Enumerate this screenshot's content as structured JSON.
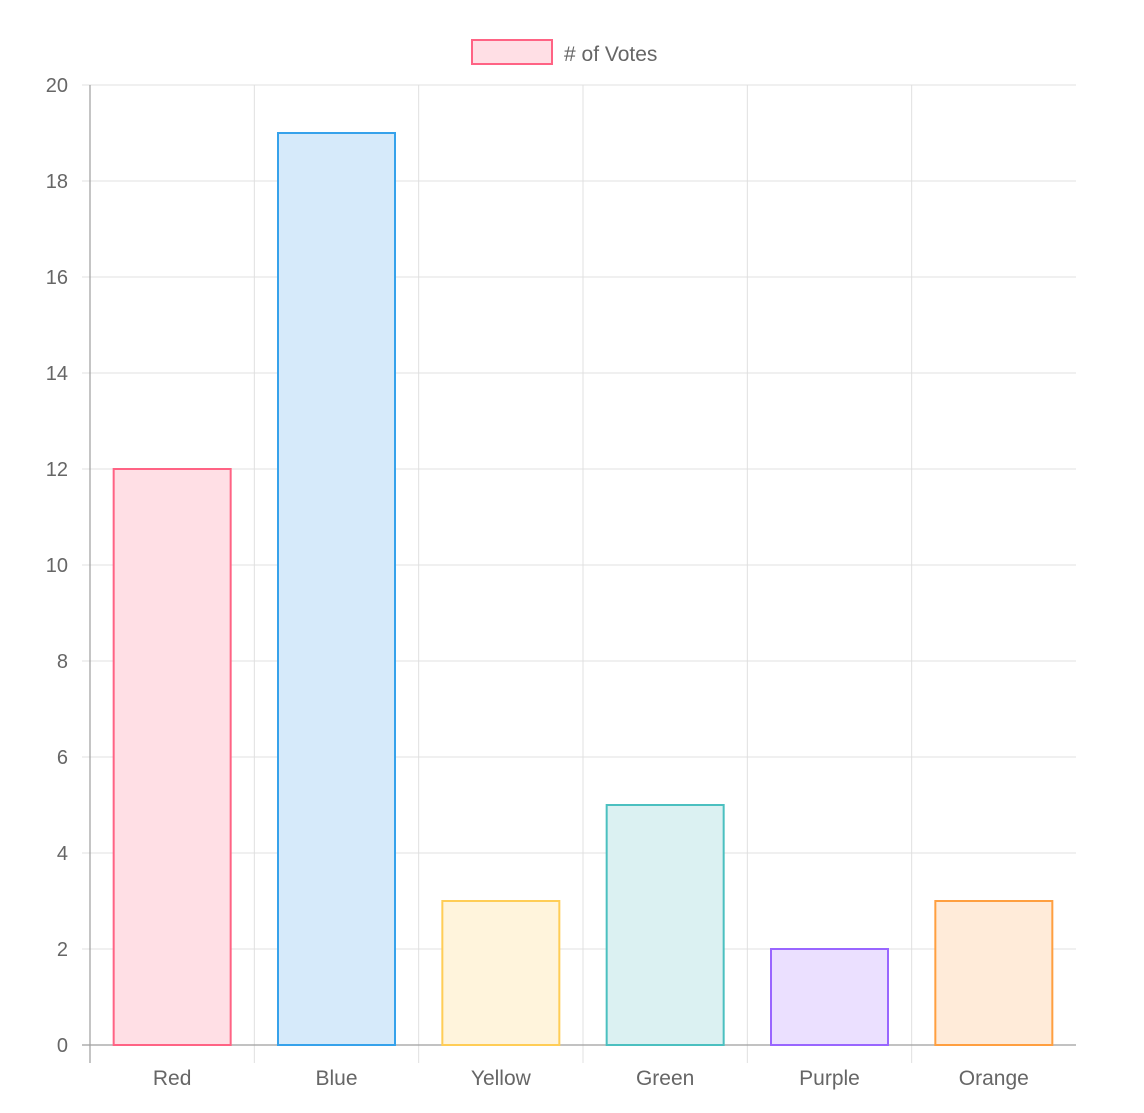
{
  "chart_data": {
    "type": "bar",
    "categories": [
      "Red",
      "Blue",
      "Yellow",
      "Green",
      "Purple",
      "Orange"
    ],
    "series": [
      {
        "name": "# of Votes",
        "values": [
          12,
          19,
          3,
          5,
          2,
          3
        ]
      }
    ],
    "bar_fill_colors": [
      "#ffdfe5",
      "#d6eafa",
      "#fff4dc",
      "#dbf1f2",
      "#ebe0ff",
      "#ffebd9"
    ],
    "bar_border_colors": [
      "#ff6384",
      "#36a2eb",
      "#ffcd56",
      "#4bc0c0",
      "#9966ff",
      "#ff9f40"
    ],
    "title": "",
    "xlabel": "",
    "ylabel": "",
    "ylim": [
      0,
      20
    ],
    "yticks": [
      "0",
      "2",
      "4",
      "6",
      "8",
      "10",
      "12",
      "14",
      "16",
      "18",
      "20"
    ],
    "grid": true,
    "legend_position": "top",
    "legend_swatch_fill": "#ffdfe5",
    "legend_swatch_border": "#ff6384",
    "grid_color": "#e0e0e0",
    "axis_color": "#9e9e9e",
    "text_color": "#666666"
  }
}
